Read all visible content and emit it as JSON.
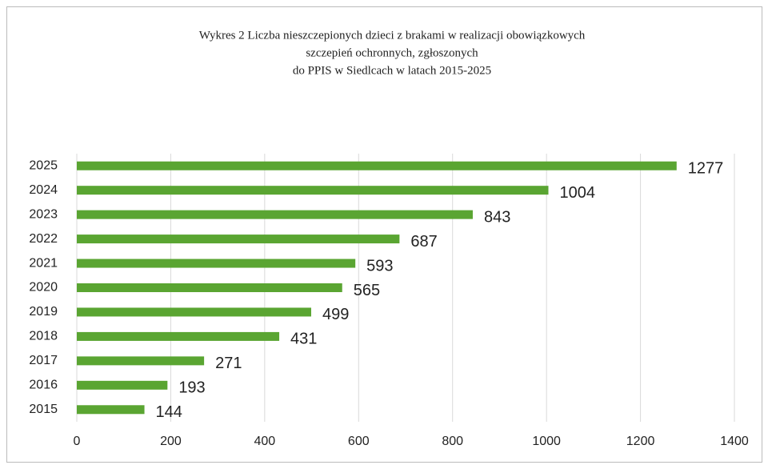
{
  "chart_data": {
    "type": "bar",
    "orientation": "horizontal",
    "title": [
      "Wykres 2 Liczba nieszczepionych dzieci z brakami w realizacji obowiązkowych",
      "szczepień ochronnych, zgłoszonych",
      "do PPIS w Siedlcach w latach 2015-2025"
    ],
    "categories": [
      "2025",
      "2024",
      "2023",
      "2022",
      "2021",
      "2020",
      "2019",
      "2018",
      "2017",
      "2016",
      "2015"
    ],
    "values": [
      1277,
      1004,
      843,
      687,
      593,
      565,
      499,
      431,
      271,
      193,
      144
    ],
    "color": "#5aa532",
    "xlim": [
      0,
      1400
    ],
    "xticks": [
      0,
      200,
      400,
      600,
      800,
      1000,
      1200,
      1400
    ],
    "grid": true
  }
}
